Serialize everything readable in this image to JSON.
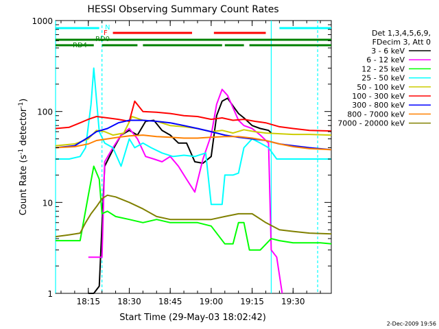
{
  "chart_data": {
    "type": "line",
    "title": "HESSI Observing Summary Count Rates",
    "xlabel": "Start Time (29-May-03 18:02:42)",
    "ylabel_main": "Count Rate (s",
    "ylabel_sup1": "-1",
    "ylabel_mid": " detector",
    "ylabel_sup2": "-1",
    "ylabel_end": ")",
    "yscale": "log",
    "xlim": [
      "18:03",
      "19:44"
    ],
    "ylim": [
      1,
      1000
    ],
    "x_ticks": [
      "18:15",
      "18:30",
      "18:45",
      "19:00",
      "19:15",
      "19:30"
    ],
    "y_ticks": [
      "1",
      "10",
      "100",
      "1000"
    ],
    "legend_header": [
      "Det 1,3,4,5,6,9,",
      "FDecim 3, Att 0"
    ],
    "timestamp": "2-Dec-2009 19:56",
    "flag_labels": {
      "N": "N",
      "F": "F",
      "RD0": "RD0",
      "RD4": "RD4"
    },
    "flags": [
      {
        "name": "N",
        "color": "#00ffff",
        "segments": [
          [
            "18:03",
            "18:19"
          ],
          [
            "19:25",
            "19:44"
          ]
        ]
      },
      {
        "name": "F",
        "color": "#ff0000",
        "segments": [
          [
            "18:24",
            "18:53"
          ],
          [
            "19:01",
            "19:20"
          ]
        ]
      },
      {
        "name": "RD0",
        "color": "#008000",
        "segments": [
          [
            "18:03",
            "19:44"
          ]
        ]
      },
      {
        "name": "RD4",
        "color": "#008000",
        "segments": [
          [
            "18:03",
            "18:17"
          ],
          [
            "18:20",
            "18:33"
          ],
          [
            "18:35",
            "19:04"
          ],
          [
            "19:05",
            "19:12"
          ],
          [
            "19:14",
            "19:44"
          ]
        ]
      }
    ],
    "attenuator_lines": [
      {
        "time": "18:03",
        "style": "solid",
        "color": "#00ffff"
      },
      {
        "time": "18:20",
        "style": "dashed",
        "color": "#00ffff"
      },
      {
        "time": "19:22",
        "style": "solid",
        "color": "#00ffff"
      },
      {
        "time": "19:39",
        "style": "dashed",
        "color": "#00ffff"
      }
    ],
    "series": [
      {
        "name": "3 - 6 keV",
        "color": "#000000",
        "x": [
          "18:15",
          "18:17",
          "18:19",
          "18:21",
          "18:24",
          "18:27",
          "18:30",
          "18:33",
          "18:36",
          "18:39",
          "18:42",
          "18:45",
          "18:48",
          "18:51",
          "18:54",
          "18:57",
          "19:00",
          "19:02",
          "19:04",
          "19:06",
          "19:08",
          "19:10",
          "19:12",
          "19:15",
          "19:18",
          "19:21",
          "19:22"
        ],
        "y": [
          1.0,
          1.0,
          1.2,
          25,
          38,
          55,
          62,
          55,
          78,
          80,
          62,
          55,
          45,
          45,
          28,
          27,
          32,
          90,
          130,
          140,
          115,
          95,
          85,
          70,
          65,
          62,
          58
        ]
      },
      {
        "name": "6 - 12 keV",
        "color": "#ff00ff",
        "x": [
          "18:15",
          "18:18",
          "18:20",
          "18:21",
          "18:24",
          "18:27",
          "18:30",
          "18:33",
          "18:36",
          "18:39",
          "18:42",
          "18:45",
          "18:48",
          "18:51",
          "18:54",
          "18:57",
          "19:00",
          "19:02",
          "19:04",
          "19:06",
          "19:08",
          "19:10",
          "19:12",
          "19:15",
          "19:18",
          "19:21",
          "19:22",
          "19:24",
          "19:26"
        ],
        "y": [
          2.5,
          2.5,
          2.5,
          28,
          40,
          55,
          65,
          50,
          32,
          30,
          28,
          32,
          25,
          18,
          13,
          30,
          55,
          120,
          175,
          150,
          110,
          80,
          70,
          65,
          55,
          45,
          3,
          2.5,
          1
        ]
      },
      {
        "name": "12 - 25 keV",
        "color": "#00ff00",
        "x": [
          "18:03",
          "18:12",
          "18:15",
          "18:17",
          "18:19",
          "18:20",
          "18:22",
          "18:25",
          "18:30",
          "18:35",
          "18:40",
          "18:45",
          "18:50",
          "18:55",
          "19:00",
          "19:05",
          "19:08",
          "19:10",
          "19:12",
          "19:14",
          "19:18",
          "19:22",
          "19:25",
          "19:30",
          "19:35",
          "19:40",
          "19:44"
        ],
        "y": [
          3.8,
          3.8,
          12,
          25,
          18,
          7.5,
          8,
          7,
          6.5,
          6,
          6.5,
          6,
          6,
          6,
          5.5,
          3.5,
          3.5,
          6,
          6,
          3,
          3,
          4,
          3.8,
          3.6,
          3.6,
          3.6,
          3.5
        ]
      },
      {
        "name": "25 - 50 keV",
        "color": "#00ffff",
        "x": [
          "18:03",
          "18:08",
          "18:12",
          "18:14",
          "18:16",
          "18:17",
          "18:19",
          "18:21",
          "18:24",
          "18:27",
          "18:30",
          "18:32",
          "18:35",
          "18:38",
          "18:42",
          "18:46",
          "18:50",
          "18:54",
          "18:58",
          "19:00",
          "19:04",
          "19:05",
          "19:08",
          "19:10",
          "19:12",
          "19:15",
          "19:18",
          "19:21",
          "19:24",
          "19:30",
          "19:36",
          "19:44"
        ],
        "y": [
          30,
          30,
          32,
          40,
          120,
          300,
          60,
          45,
          40,
          25,
          50,
          40,
          45,
          40,
          35,
          32,
          33,
          32,
          35,
          9.5,
          9.5,
          20,
          20,
          21,
          40,
          50,
          45,
          40,
          30,
          30,
          30,
          30
        ]
      },
      {
        "name": "50 - 100 keV",
        "color": "#cccc00",
        "x": [
          "18:03",
          "18:10",
          "18:15",
          "18:18",
          "18:21",
          "18:24",
          "18:28",
          "18:31",
          "18:35",
          "18:40",
          "18:45",
          "18:50",
          "18:55",
          "19:00",
          "19:04",
          "19:08",
          "19:12",
          "19:16",
          "19:20",
          "19:25",
          "19:30",
          "19:36",
          "19:44"
        ],
        "y": [
          42,
          44,
          50,
          62,
          60,
          55,
          58,
          88,
          80,
          78,
          70,
          68,
          65,
          60,
          62,
          58,
          63,
          60,
          58,
          57,
          56,
          56,
          55
        ]
      },
      {
        "name": "100 - 300 keV",
        "color": "#ff0000",
        "x": [
          "18:03",
          "18:08",
          "18:12",
          "18:15",
          "18:18",
          "18:22",
          "18:26",
          "18:30",
          "18:32",
          "18:35",
          "18:40",
          "18:45",
          "18:50",
          "18:55",
          "19:00",
          "19:04",
          "19:08",
          "19:12",
          "19:16",
          "19:20",
          "19:25",
          "19:30",
          "19:36",
          "19:44"
        ],
        "y": [
          65,
          67,
          75,
          82,
          88,
          85,
          82,
          78,
          130,
          100,
          98,
          95,
          90,
          88,
          82,
          85,
          80,
          82,
          78,
          75,
          68,
          65,
          62,
          61
        ]
      },
      {
        "name": "300 - 800 keV",
        "color": "#0000ff",
        "x": [
          "18:03",
          "18:10",
          "18:15",
          "18:18",
          "18:22",
          "18:26",
          "18:30",
          "18:35",
          "18:40",
          "18:45",
          "18:50",
          "18:55",
          "19:00",
          "19:05",
          "19:10",
          "19:15",
          "19:20",
          "19:25",
          "19:30",
          "19:36",
          "19:44"
        ],
        "y": [
          40,
          42,
          52,
          60,
          65,
          75,
          80,
          80,
          78,
          75,
          70,
          65,
          60,
          55,
          52,
          50,
          48,
          44,
          42,
          40,
          38
        ]
      },
      {
        "name": "800 - 7000 keV",
        "color": "#ff8000",
        "x": [
          "18:03",
          "18:10",
          "18:15",
          "18:18",
          "18:22",
          "18:26",
          "18:30",
          "18:35",
          "18:40",
          "18:45",
          "18:50",
          "18:55",
          "19:00",
          "19:05",
          "19:10",
          "19:15",
          "19:20",
          "19:25",
          "19:30",
          "19:36",
          "19:44"
        ],
        "y": [
          40,
          41,
          44,
          48,
          50,
          52,
          54,
          55,
          53,
          52,
          51,
          51,
          52,
          53,
          53,
          51,
          48,
          44,
          41,
          39,
          38
        ]
      },
      {
        "name": "7000 - 20000 keV",
        "color": "#808000",
        "x": [
          "18:03",
          "18:08",
          "18:12",
          "18:14",
          "18:16",
          "18:18",
          "18:20",
          "18:22",
          "18:25",
          "18:30",
          "18:35",
          "18:40",
          "18:45",
          "18:50",
          "18:55",
          "19:00",
          "19:05",
          "19:10",
          "19:15",
          "19:20",
          "19:25",
          "19:30",
          "19:36",
          "19:44"
        ],
        "y": [
          4.2,
          4.4,
          4.6,
          6,
          7.5,
          9,
          11,
          12,
          11.5,
          10,
          8.5,
          7,
          6.5,
          6.5,
          6.5,
          6.5,
          7,
          7.5,
          7.5,
          6,
          5,
          4.8,
          4.6,
          4.5
        ]
      }
    ]
  }
}
